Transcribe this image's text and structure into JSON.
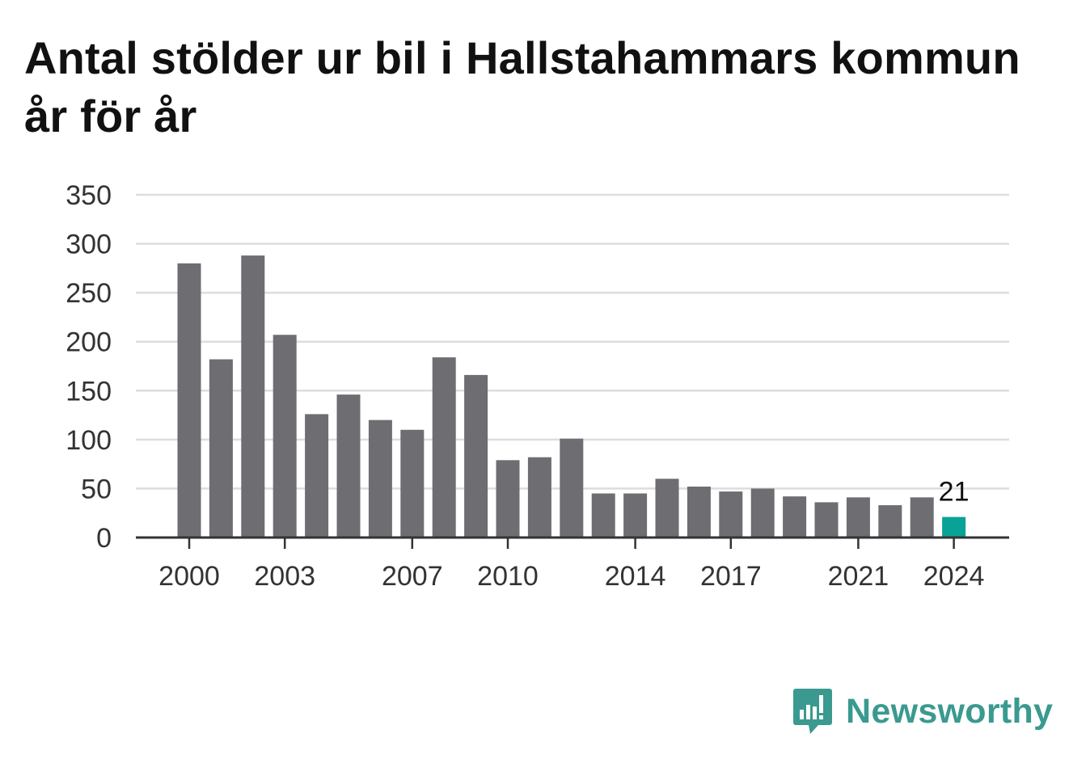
{
  "title": "Antal stölder ur bil i Hallstahammars kommun år för år",
  "brand": {
    "name": "Newsworthy",
    "icon": "newsworthy-logo-icon",
    "color": "#3a9a8f"
  },
  "colors": {
    "bar": "#6e6d72",
    "highlight": "#0aa197",
    "grid": "#dddddd",
    "axis": "#333333"
  },
  "chart_data": {
    "type": "bar",
    "categories": [
      "2000",
      "2001",
      "2002",
      "2003",
      "2004",
      "2005",
      "2006",
      "2007",
      "2008",
      "2009",
      "2010",
      "2011",
      "2012",
      "2013",
      "2014",
      "2015",
      "2016",
      "2017",
      "2018",
      "2019",
      "2020",
      "2021",
      "2022",
      "2023",
      "2024"
    ],
    "values": [
      280,
      182,
      288,
      207,
      126,
      146,
      120,
      110,
      184,
      166,
      79,
      82,
      101,
      45,
      45,
      60,
      52,
      47,
      50,
      42,
      36,
      41,
      33,
      41,
      21
    ],
    "highlight_index": 24,
    "data_labels": [
      {
        "index": 24,
        "text": "21"
      }
    ],
    "xtick_labels": [
      "2000",
      "2003",
      "2007",
      "2010",
      "2014",
      "2017",
      "2021",
      "2024"
    ],
    "ytick_labels": [
      "0",
      "50",
      "100",
      "150",
      "200",
      "250",
      "300",
      "350"
    ],
    "ylim": [
      0,
      350
    ],
    "grid": "horizontal",
    "legend": "none",
    "xlabel": "",
    "ylabel": ""
  }
}
